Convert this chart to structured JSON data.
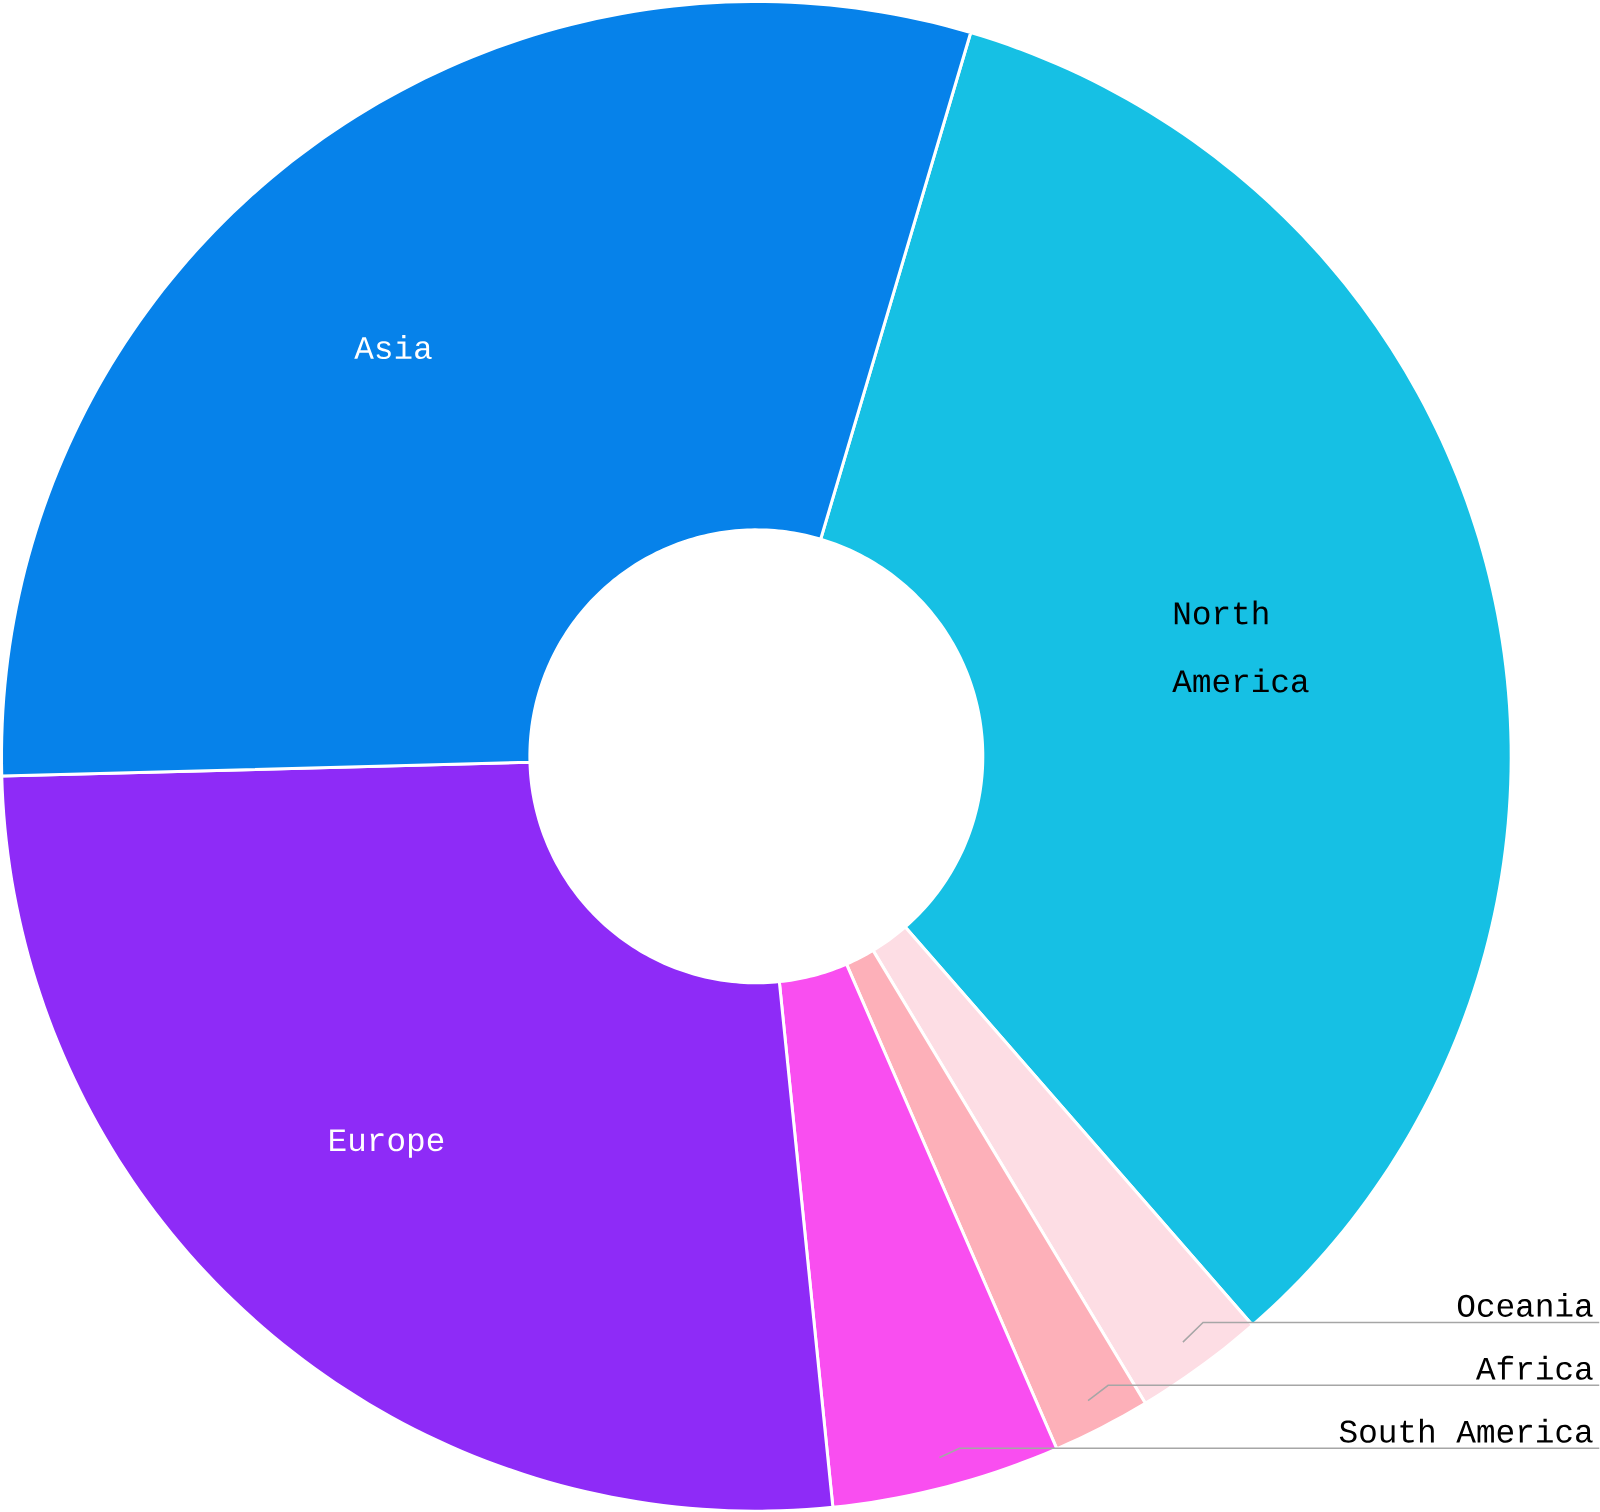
{
  "chart_data": {
    "type": "donut",
    "categories": [
      "North America",
      "Oceania",
      "Africa",
      "South America",
      "Europe",
      "Asia"
    ],
    "values": [
      34,
      2.8,
      2.1,
      4.9,
      26.2,
      30
    ],
    "colors": [
      "#16c0e4",
      "#fddde4",
      "#fdb0b9",
      "#f94ef0",
      "#8e2bf7",
      "#0682ea"
    ]
  }
}
